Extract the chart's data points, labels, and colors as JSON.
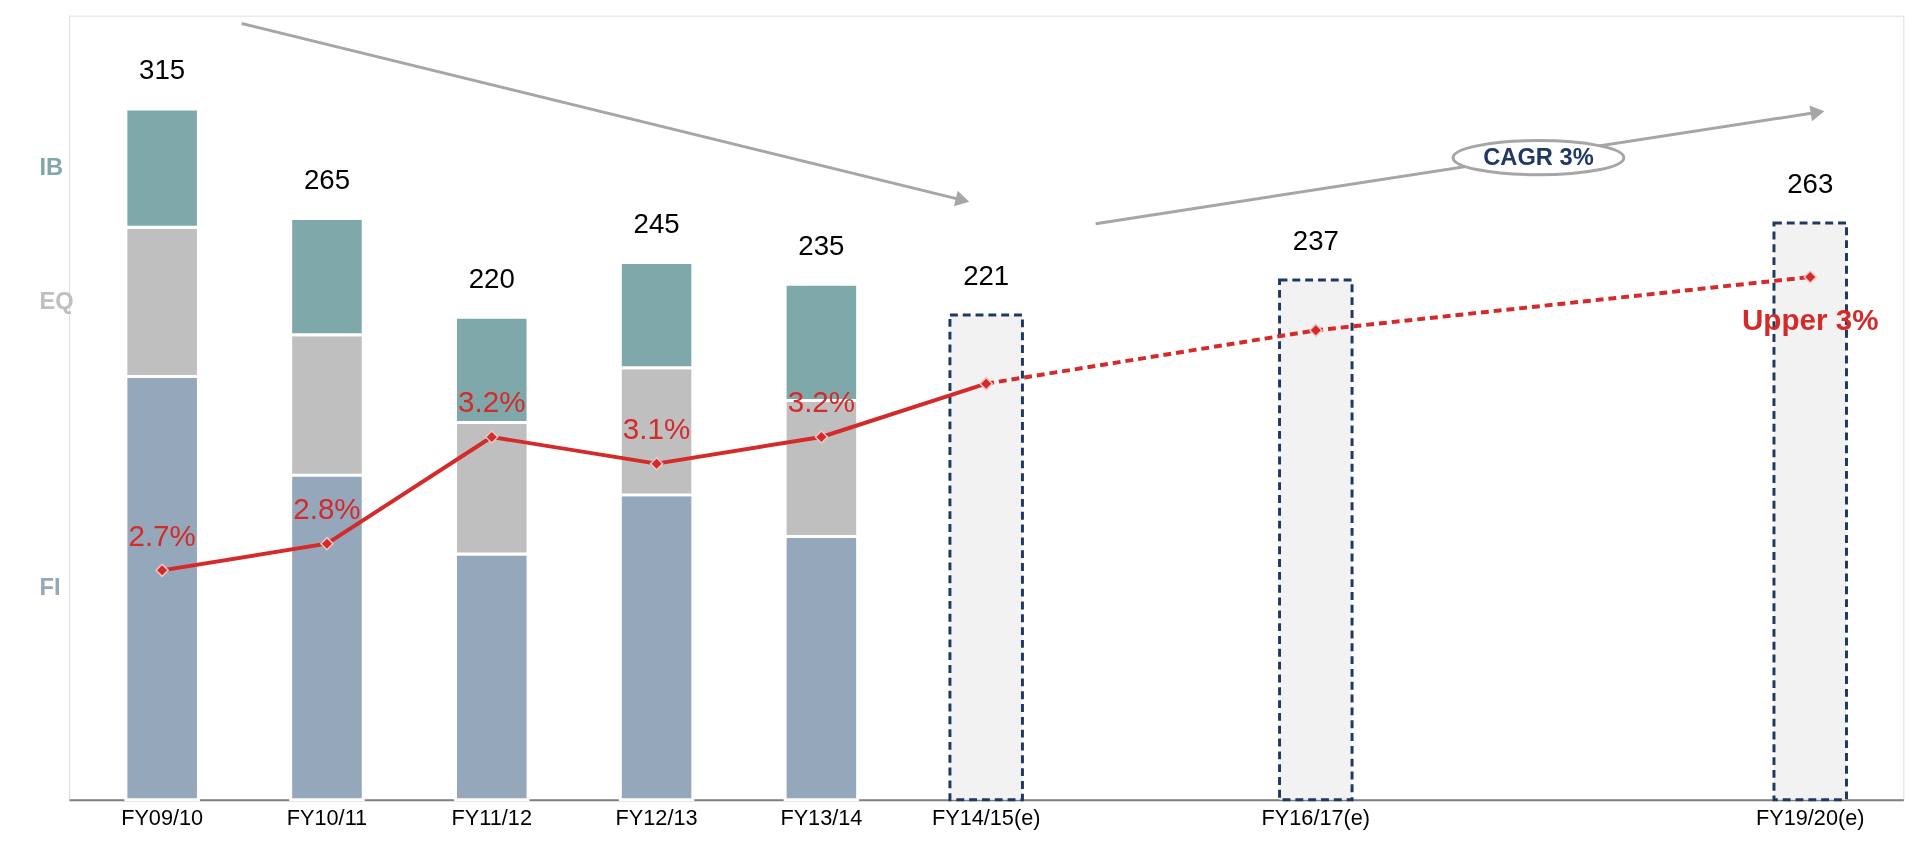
{
  "chart_data": {
    "type": "bar",
    "stacked": true,
    "grid": false,
    "categories": [
      "FY09/10",
      "FY10/11",
      "FY11/12",
      "FY12/13",
      "FY13/14",
      "FY14/15(e)",
      null,
      "FY16/17(e)",
      null,
      null,
      "FY19/20(e)"
    ],
    "series": [
      {
        "name": "FI",
        "color": "#94a7bb",
        "values": [
          193,
          148,
          112,
          139,
          120,
          null,
          null,
          null,
          null,
          null,
          null
        ]
      },
      {
        "name": "EQ",
        "color": "#bfbfbf",
        "values": [
          68,
          64,
          60,
          58,
          62,
          null,
          null,
          null,
          null,
          null,
          null
        ]
      },
      {
        "name": "IB",
        "color": "#7fa8aa",
        "values": [
          54,
          53,
          48,
          48,
          53,
          null,
          null,
          null,
          null,
          null,
          null
        ]
      },
      {
        "color": "#f2f2f2",
        "line_style": "dashed",
        "values": [
          null,
          null,
          null,
          null,
          null,
          221,
          null,
          237,
          null,
          null,
          263
        ],
        "value_labels": [
          null,
          null,
          null,
          null,
          null,
          "221",
          null,
          "237",
          null,
          null,
          "263"
        ]
      },
      {
        "type": "line",
        "axis": "y2",
        "color": "#d42a2a",
        "line_style": "solid",
        "marker": "diamond",
        "values": [
          2.7,
          2.8,
          3.2,
          3.1,
          3.2,
          3.4,
          null,
          null,
          null,
          null,
          null
        ],
        "value_labels": [
          "2.7%",
          "2.8%",
          "3.2%",
          "3.1%",
          "3.2%",
          null,
          null,
          null,
          null,
          null,
          null
        ]
      },
      {
        "type": "line",
        "axis": "y2",
        "color": "#d42a2a",
        "line_style": "dashed",
        "marker": "diamond",
        "values": [
          null,
          null,
          null,
          null,
          null,
          3.4,
          null,
          3.6,
          null,
          null,
          3.8
        ],
        "value_labels": [
          null,
          null,
          null,
          null,
          null,
          null,
          null,
          null,
          null,
          null,
          "Upper 3%"
        ]
      }
    ],
    "totals": [
      "315",
      "265",
      "220",
      "245",
      "235",
      null,
      null,
      null,
      null,
      null,
      null
    ],
    "annotations": [
      "CAGR 3%"
    ]
  }
}
